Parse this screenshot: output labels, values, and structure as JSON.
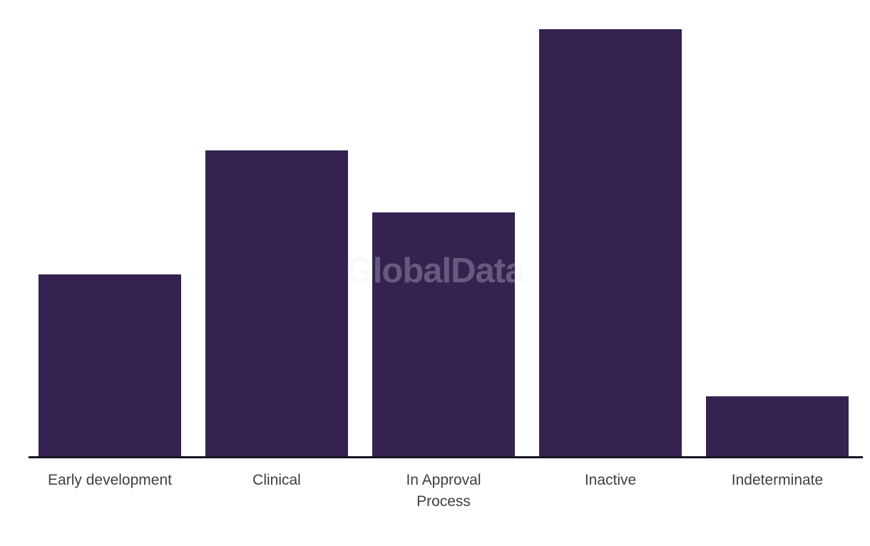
{
  "watermark": {
    "text": "GlobalData"
  },
  "chart_data": {
    "type": "bar",
    "title": "",
    "xlabel": "",
    "ylabel": "",
    "categories": [
      "Early development",
      "Clinical",
      "In Approval Process",
      "Inactive",
      "Indeterminate"
    ],
    "tick_label_lines": [
      [
        "Early development"
      ],
      [
        "Clinical"
      ],
      [
        "In Approval",
        "Process"
      ],
      [
        "Inactive"
      ],
      [
        "Indeterminate"
      ]
    ],
    "values": [
      256,
      430,
      343,
      600,
      85
    ],
    "ylim": [
      0,
      640
    ],
    "y_axis_visible": false,
    "gridlines": false,
    "legend": "none",
    "colors": {
      "bar": "#342251",
      "axis_line": "#16141f",
      "tick_label": "#3f3f3f",
      "watermark": "rgba(237,237,242,0.28)",
      "background": "#ffffff"
    }
  }
}
